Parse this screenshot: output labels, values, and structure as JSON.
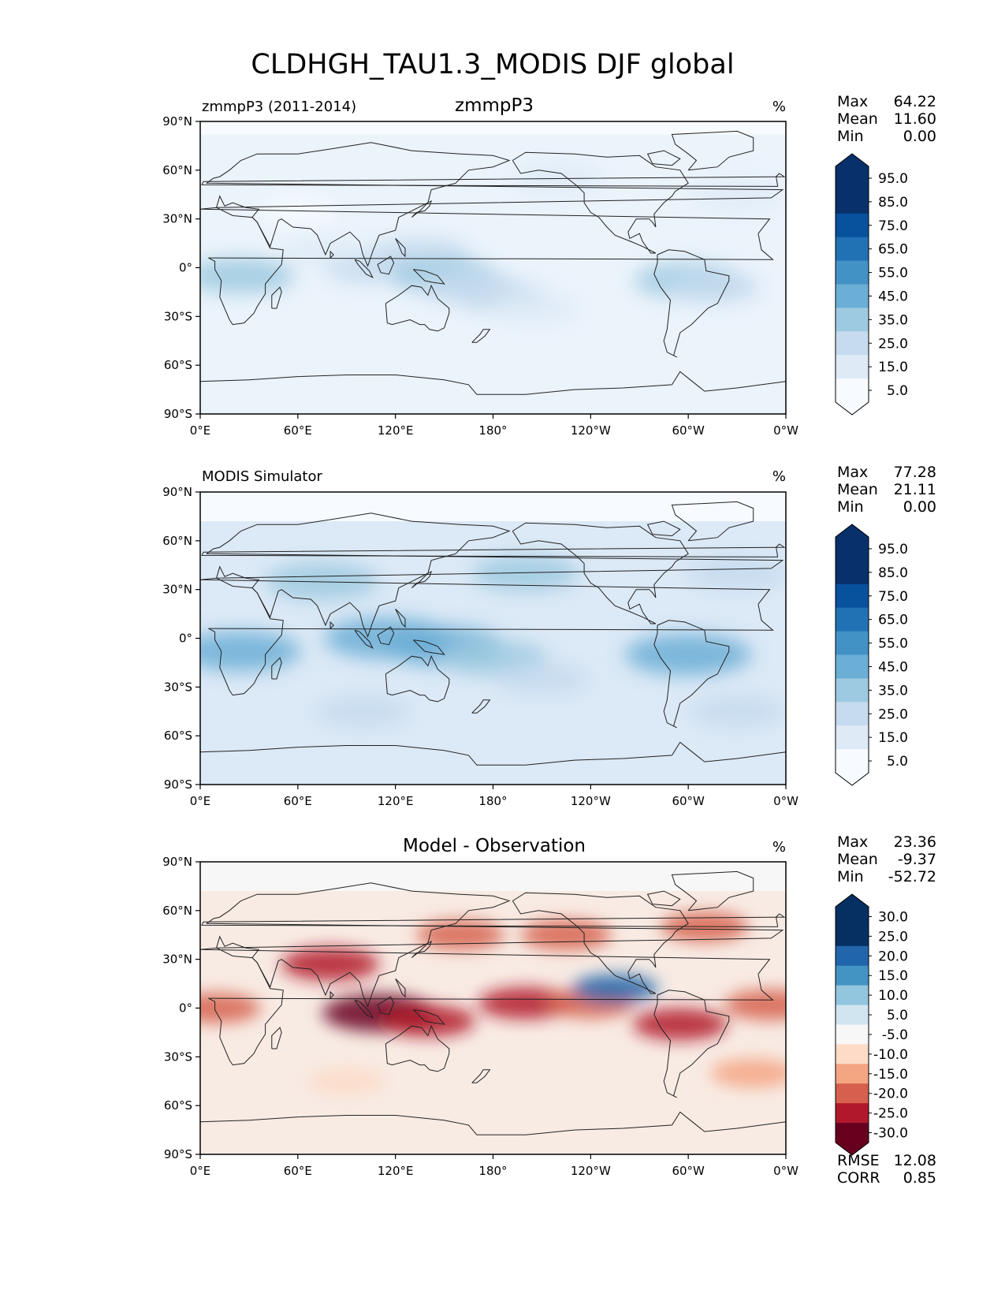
{
  "figure": {
    "title": "CLDHGH_TAU1.3_MODIS DJF global"
  },
  "chart_data": [
    {
      "type": "heatmap",
      "kind": "contour-map",
      "title": "zmmpP3",
      "left_label": "zmmpP3 (2011-2014)",
      "units": "%",
      "stats": [
        {
          "label": "Max",
          "value": "64.22"
        },
        {
          "label": "Mean",
          "value": "11.60"
        },
        {
          "label": "Min",
          "value": "0.00"
        }
      ],
      "xticks": [
        {
          "lon": 0,
          "label": "0°E"
        },
        {
          "lon": 60,
          "label": "60°E"
        },
        {
          "lon": 120,
          "label": "120°E"
        },
        {
          "lon": 180,
          "label": "180°"
        },
        {
          "lon": 240,
          "label": "120°W"
        },
        {
          "lon": 300,
          "label": "60°W"
        },
        {
          "lon": 360,
          "label": "0°W"
        }
      ],
      "yticks": [
        {
          "lat": 90,
          "label": "90°N"
        },
        {
          "lat": 60,
          "label": "60°N"
        },
        {
          "lat": 30,
          "label": "30°N"
        },
        {
          "lat": 0,
          "label": "0°"
        },
        {
          "lat": -30,
          "label": "30°S"
        },
        {
          "lat": -60,
          "label": "60°S"
        },
        {
          "lat": -90,
          "label": "90°S"
        }
      ],
      "xlim": [
        0,
        360
      ],
      "ylim": [
        -90,
        90
      ],
      "colorbar": {
        "colors": [
          "#f7fbff",
          "#deebf7",
          "#c6dbef",
          "#9ecae1",
          "#6baed6",
          "#4292c6",
          "#2171b5",
          "#08519c",
          "#08306b",
          "#08306b"
        ],
        "labels": [
          "5.0",
          "15.0",
          "25.0",
          "35.0",
          "45.0",
          "55.0",
          "65.0",
          "75.0",
          "85.0",
          "95.0"
        ],
        "extend": "both"
      },
      "data_coverage_lat": [
        -90,
        82
      ],
      "features": [
        {
          "lon": 105,
          "lat": 0,
          "value": 25
        },
        {
          "lon": 135,
          "lat": 8,
          "value": 30
        },
        {
          "lon": 150,
          "lat": -5,
          "value": 35
        },
        {
          "lon": 165,
          "lat": -12,
          "value": 30
        },
        {
          "lon": 185,
          "lat": -18,
          "value": 25
        },
        {
          "lon": 205,
          "lat": -25,
          "value": 20
        },
        {
          "lon": 25,
          "lat": -5,
          "value": 35
        },
        {
          "lon": 300,
          "lat": -8,
          "value": 35
        },
        {
          "lon": 315,
          "lat": -12,
          "value": 25
        },
        {
          "lon": 220,
          "lat": 55,
          "value": 20
        },
        {
          "lon": 330,
          "lat": 45,
          "value": 20
        },
        {
          "lon": 75,
          "lat": 10,
          "value": 15
        },
        {
          "lon": 60,
          "lat": 35,
          "value": 12
        }
      ]
    },
    {
      "type": "heatmap",
      "kind": "contour-map",
      "title": "",
      "left_label": "MODIS Simulator",
      "units": "%",
      "stats": [
        {
          "label": "Max",
          "value": "77.28"
        },
        {
          "label": "Mean",
          "value": "21.11"
        },
        {
          "label": "Min",
          "value": "0.00"
        }
      ],
      "xticks": [
        {
          "lon": 0,
          "label": "0°E"
        },
        {
          "lon": 60,
          "label": "60°E"
        },
        {
          "lon": 120,
          "label": "120°E"
        },
        {
          "lon": 180,
          "label": "180°"
        },
        {
          "lon": 240,
          "label": "120°W"
        },
        {
          "lon": 300,
          "label": "60°W"
        },
        {
          "lon": 360,
          "label": "0°W"
        }
      ],
      "yticks": [
        {
          "lat": 90,
          "label": "90°N"
        },
        {
          "lat": 60,
          "label": "60°N"
        },
        {
          "lat": 30,
          "label": "30°N"
        },
        {
          "lat": 0,
          "label": "0°"
        },
        {
          "lat": -30,
          "label": "30°S"
        },
        {
          "lat": -60,
          "label": "60°S"
        },
        {
          "lat": -90,
          "label": "90°S"
        }
      ],
      "xlim": [
        0,
        360
      ],
      "ylim": [
        -90,
        90
      ],
      "colorbar": {
        "colors": [
          "#f7fbff",
          "#deebf7",
          "#c6dbef",
          "#9ecae1",
          "#6baed6",
          "#4292c6",
          "#2171b5",
          "#08519c",
          "#08306b",
          "#08306b"
        ],
        "labels": [
          "5.0",
          "15.0",
          "25.0",
          "35.0",
          "45.0",
          "55.0",
          "65.0",
          "75.0",
          "85.0",
          "95.0"
        ],
        "extend": "both"
      },
      "data_coverage_lat": [
        -90,
        72
      ],
      "features": [
        {
          "lon": 115,
          "lat": 0,
          "value": 50
        },
        {
          "lon": 150,
          "lat": -5,
          "value": 45
        },
        {
          "lon": 180,
          "lat": -12,
          "value": 35
        },
        {
          "lon": 210,
          "lat": -25,
          "value": 25
        },
        {
          "lon": 25,
          "lat": -8,
          "value": 45
        },
        {
          "lon": 300,
          "lat": -10,
          "value": 50
        },
        {
          "lon": 200,
          "lat": 40,
          "value": 35
        },
        {
          "lon": 330,
          "lat": 40,
          "value": 30
        },
        {
          "lon": 75,
          "lat": 35,
          "value": 40
        },
        {
          "lon": 100,
          "lat": -45,
          "value": 25
        },
        {
          "lon": 330,
          "lat": -45,
          "value": 25
        }
      ]
    },
    {
      "type": "heatmap",
      "kind": "contour-map",
      "title": "Model - Observation",
      "left_label": "",
      "units": "%",
      "stats": [
        {
          "label": "Max",
          "value": "23.36"
        },
        {
          "label": "Mean",
          "value": "-9.37"
        },
        {
          "label": "Min",
          "value": "-52.72"
        }
      ],
      "extra_stats": [
        {
          "label": "RMSE",
          "value": "12.08"
        },
        {
          "label": "CORR",
          "value": "0.85"
        }
      ],
      "xticks": [
        {
          "lon": 0,
          "label": "0°E"
        },
        {
          "lon": 60,
          "label": "60°E"
        },
        {
          "lon": 120,
          "label": "120°E"
        },
        {
          "lon": 180,
          "label": "180°"
        },
        {
          "lon": 240,
          "label": "120°W"
        },
        {
          "lon": 300,
          "label": "60°W"
        },
        {
          "lon": 360,
          "label": "0°W"
        }
      ],
      "yticks": [
        {
          "lat": 90,
          "label": "90°N"
        },
        {
          "lat": 60,
          "label": "60°N"
        },
        {
          "lat": 30,
          "label": "30°N"
        },
        {
          "lat": 0,
          "label": "0°"
        },
        {
          "lat": -30,
          "label": "30°S"
        },
        {
          "lat": -60,
          "label": "60°S"
        },
        {
          "lat": -90,
          "label": "90°S"
        }
      ],
      "xlim": [
        0,
        360
      ],
      "ylim": [
        -90,
        90
      ],
      "colorbar": {
        "colors": [
          "#67001f",
          "#b2182b",
          "#d6604d",
          "#f4a582",
          "#fddbc7",
          "#f7f7f7",
          "#d1e5f0",
          "#92c5de",
          "#4393c3",
          "#2166ac",
          "#053061",
          "#053061"
        ],
        "labels": [
          "-30.0",
          "-25.0",
          "-20.0",
          "-15.0",
          "-10.0",
          "-5.0",
          "5.0",
          "10.0",
          "15.0",
          "20.0",
          "25.0",
          "30.0"
        ],
        "extend": "both"
      },
      "data_coverage_lat": [
        -90,
        72
      ],
      "features": [
        {
          "lon": 110,
          "lat": -3,
          "value": -40
        },
        {
          "lon": 140,
          "lat": -8,
          "value": -25
        },
        {
          "lon": 200,
          "lat": 3,
          "value": -25
        },
        {
          "lon": 240,
          "lat": 3,
          "value": -20
        },
        {
          "lon": 350,
          "lat": 2,
          "value": -22
        },
        {
          "lon": 10,
          "lat": 0,
          "value": -20
        },
        {
          "lon": 295,
          "lat": -10,
          "value": -25
        },
        {
          "lon": 80,
          "lat": 27,
          "value": -28
        },
        {
          "lon": 160,
          "lat": 45,
          "value": -20
        },
        {
          "lon": 225,
          "lat": 45,
          "value": -22
        },
        {
          "lon": 310,
          "lat": 50,
          "value": -20
        },
        {
          "lon": 255,
          "lat": 12,
          "value": 18
        },
        {
          "lon": 90,
          "lat": -45,
          "value": -12
        },
        {
          "lon": 340,
          "lat": -40,
          "value": -18
        }
      ]
    }
  ]
}
